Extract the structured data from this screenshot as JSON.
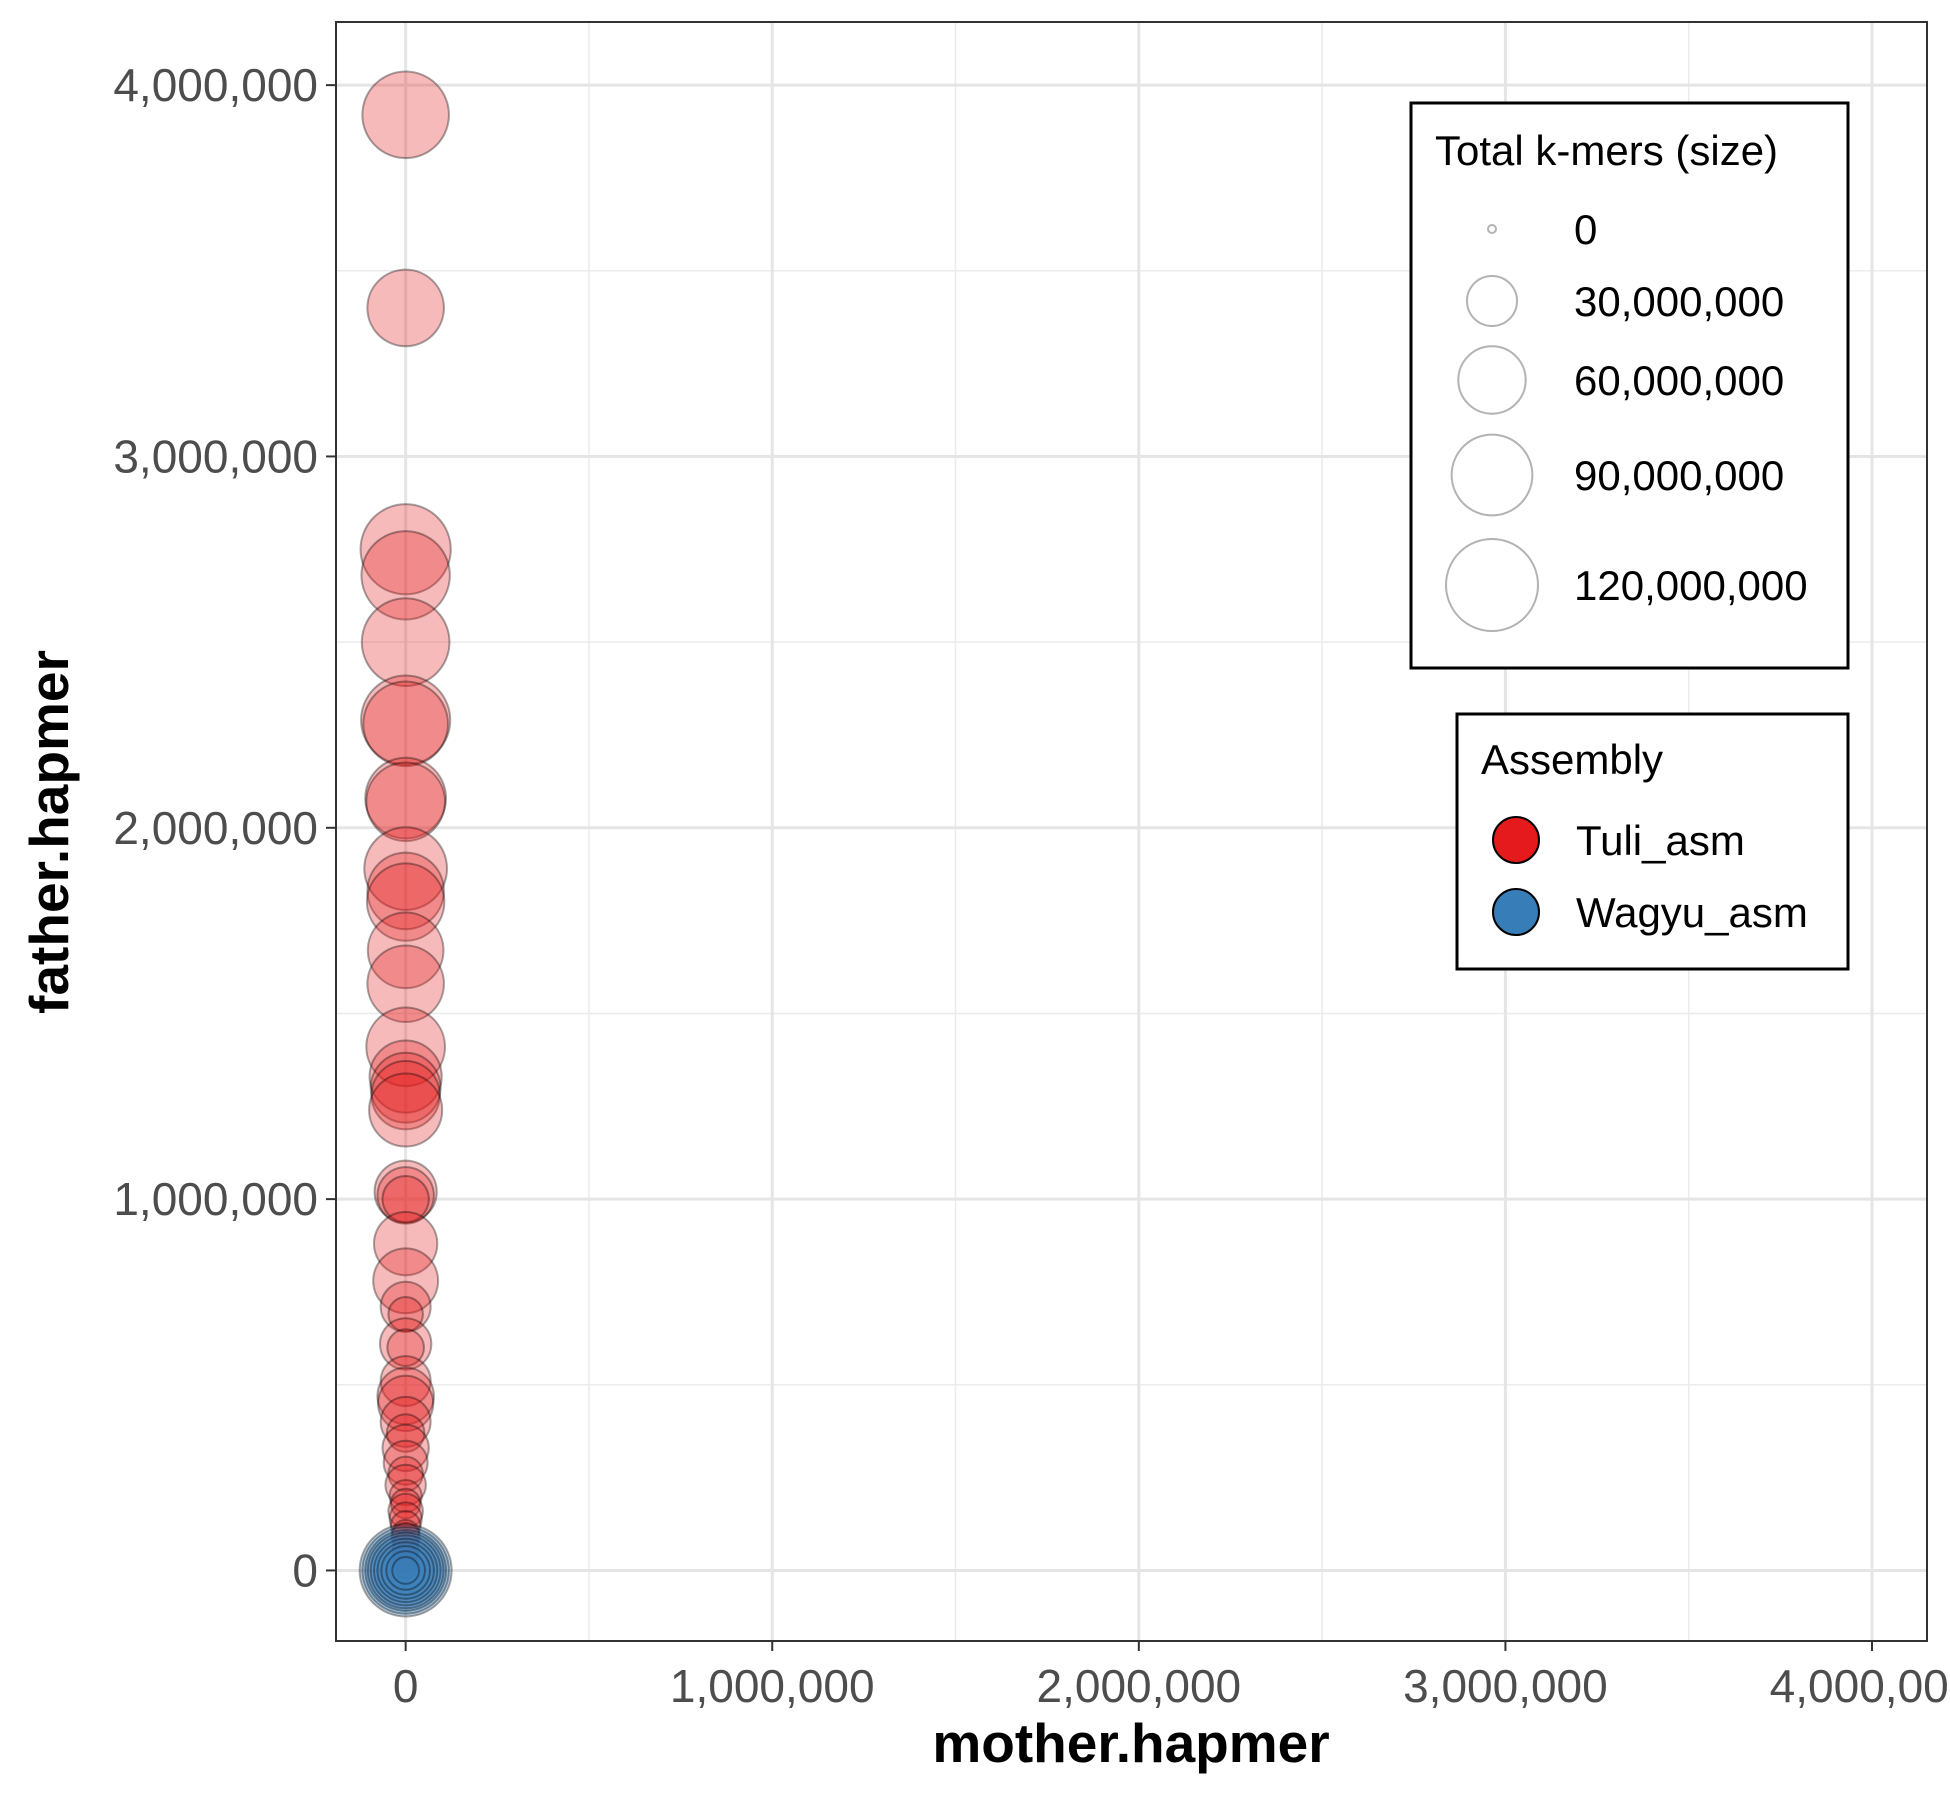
{
  "chart_data": {
    "type": "scatter",
    "xlabel": "mother.hapmer",
    "ylabel": "father.hapmer",
    "xlim": [
      -190000,
      4150000
    ],
    "ylim": [
      -190000,
      4170000
    ],
    "x_ticks": [
      0,
      1000000,
      2000000,
      3000000,
      4000000
    ],
    "x_tick_labels": [
      "0",
      "1,000,000",
      "2,000,000",
      "3,000,000",
      "4,000,000"
    ],
    "y_ticks": [
      0,
      1000000,
      2000000,
      3000000,
      4000000
    ],
    "y_tick_labels": [
      "0",
      "1,000,000",
      "2,000,000",
      "3,000,000",
      "4,000,000"
    ],
    "grid": true,
    "size_legend": {
      "title": "Total k-mers (size)",
      "placement": "top-right",
      "values": [
        0,
        30000000,
        60000000,
        90000000,
        120000000
      ],
      "labels": [
        "0",
        "30,000,000",
        "60,000,000",
        "90,000,000",
        "120,000,000"
      ]
    },
    "color_legend": {
      "title": "Assembly",
      "placement": "right",
      "entries": [
        {
          "label": "Tuli_asm",
          "color": "#E41A1C"
        },
        {
          "label": "Wagyu_asm",
          "color": "#377EB8"
        }
      ]
    },
    "series": [
      {
        "name": "Tuli_asm",
        "color": "#E41A1C",
        "x": [
          0,
          0,
          0,
          0,
          0,
          0,
          0,
          0,
          0,
          0,
          0,
          0,
          0,
          0,
          0,
          0,
          0,
          0,
          0,
          0,
          0,
          0,
          0,
          0,
          0,
          0,
          0,
          0,
          0,
          0,
          0,
          0,
          0,
          0,
          0,
          0,
          0,
          0,
          0,
          0,
          0,
          0,
          0,
          0,
          0,
          0,
          0,
          0,
          0,
          0,
          0
        ],
        "y": [
          3920000,
          3400000,
          2750000,
          2680000,
          2500000,
          2290000,
          2280000,
          2080000,
          2070000,
          1890000,
          1830000,
          1800000,
          1670000,
          1580000,
          1410000,
          1330000,
          1300000,
          1280000,
          1240000,
          1020000,
          1010000,
          1000000,
          880000,
          780000,
          710000,
          690000,
          610000,
          600000,
          510000,
          470000,
          450000,
          400000,
          370000,
          330000,
          290000,
          260000,
          230000,
          200000,
          180000,
          160000,
          140000,
          120000,
          100000,
          90000,
          70000,
          50000,
          40000,
          30000,
          20000,
          10000,
          5000
        ],
        "size": [
          105000000,
          80000000,
          115000000,
          110000000,
          108000000,
          112000000,
          100000000,
          90000000,
          85000000,
          95000000,
          80000000,
          82000000,
          78000000,
          80000000,
          85000000,
          70000000,
          65000000,
          62000000,
          72000000,
          50000000,
          40000000,
          25000000,
          52000000,
          55000000,
          30000000,
          12000000,
          32000000,
          14000000,
          30000000,
          40000000,
          38000000,
          30000000,
          15000000,
          25000000,
          22000000,
          12000000,
          18000000,
          10000000,
          8000000,
          12000000,
          10000000,
          8000000,
          6000000,
          7000000,
          5000000,
          6000000,
          4000000,
          5000000,
          3000000,
          4000000,
          2000000
        ]
      },
      {
        "name": "Wagyu_asm",
        "color": "#377EB8",
        "x": [
          0,
          0,
          0,
          0,
          0,
          0,
          0,
          0,
          0,
          0
        ],
        "y": [
          0,
          0,
          0,
          0,
          0,
          0,
          0,
          0,
          0,
          0
        ],
        "size": [
          120000000,
          105000000,
          90000000,
          78000000,
          65000000,
          52000000,
          40000000,
          28000000,
          16000000,
          6000000
        ]
      }
    ]
  }
}
